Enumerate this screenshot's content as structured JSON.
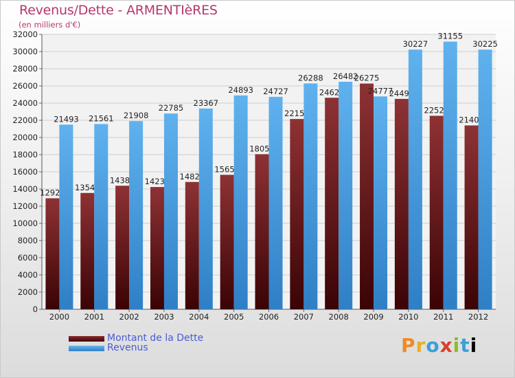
{
  "chart_data": {
    "type": "bar",
    "title": "Revenus/Dette - ARMENTIèRES",
    "subtitle": "(en milliers d'€)",
    "categories": [
      "2000",
      "2001",
      "2002",
      "2003",
      "2004",
      "2005",
      "2006",
      "2007",
      "2008",
      "2009",
      "2010",
      "2011",
      "2012"
    ],
    "series": [
      {
        "name": "Montant de la Dette",
        "values": [
          12920,
          13540,
          14380,
          14230,
          14820,
          15650,
          18050,
          22150,
          24620,
          26275,
          24490,
          22520,
          21400
        ],
        "labels": [
          "12920",
          "13540",
          "14380",
          "14230",
          "14820",
          "15650",
          "18050",
          "22150",
          "24620",
          "26275",
          "24490",
          "22520",
          "21400"
        ],
        "color": "#6b1a1c"
      },
      {
        "name": "Revenus",
        "values": [
          21493,
          21561,
          21908,
          22785,
          23367,
          24893,
          24727,
          26288,
          26482,
          24777,
          30227,
          31155,
          30225
        ],
        "labels": [
          "21493",
          "21561",
          "21908",
          "22785",
          "23367",
          "24893",
          "24727",
          "26288",
          "26482",
          "24777",
          "30227",
          "31155",
          "30225"
        ],
        "color": "#3c93d8"
      }
    ],
    "ylim": [
      0,
      32000
    ],
    "ytick_step": 2000,
    "grid": true,
    "legend_position": "bottom-left"
  },
  "logo": {
    "letters": [
      "P",
      "r",
      "o",
      "x",
      "i",
      "t",
      "i"
    ]
  }
}
